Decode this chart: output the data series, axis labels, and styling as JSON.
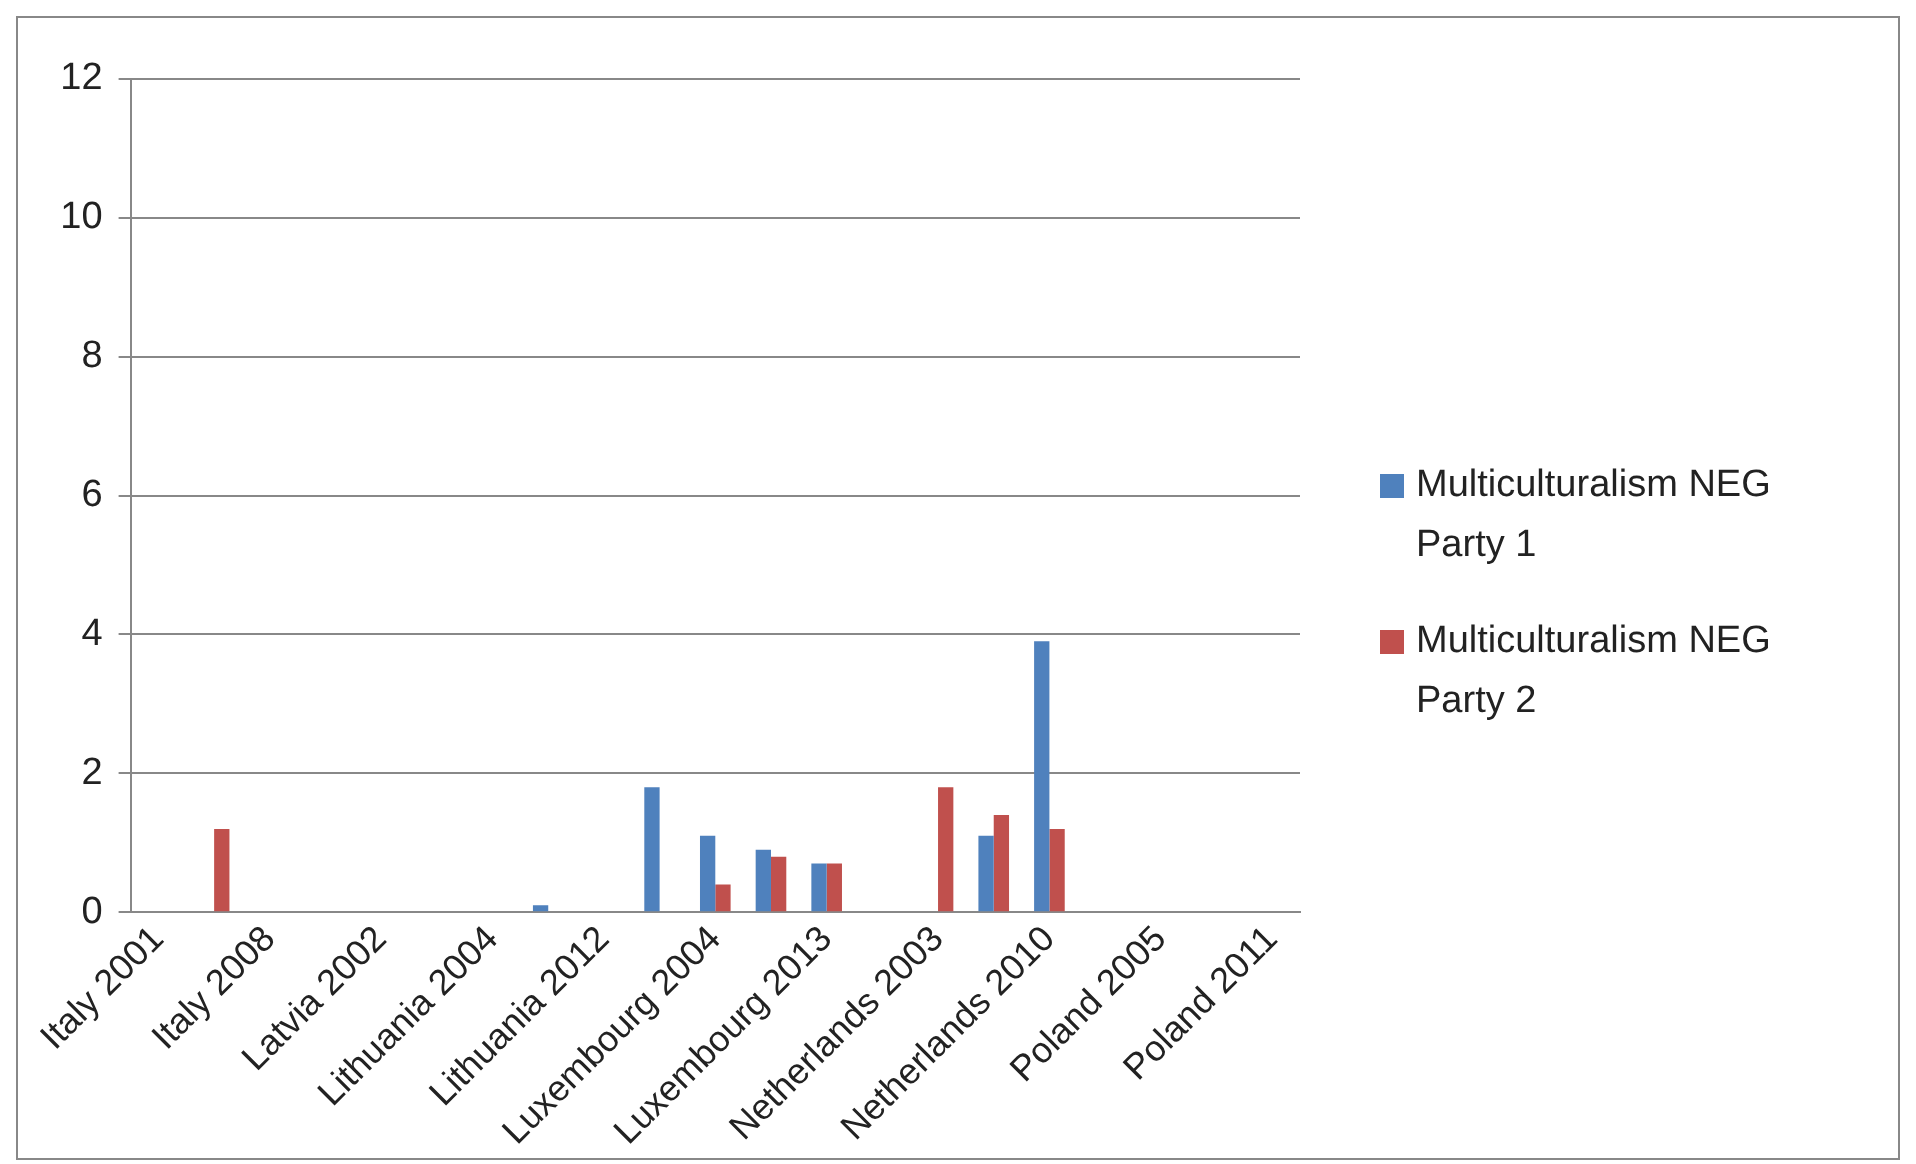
{
  "chart_data": {
    "type": "bar",
    "categories": [
      "Italy 2001",
      null,
      "Italy 2008",
      null,
      "Latvia 2002",
      null,
      "Lithuania 2004",
      null,
      "Lithuania 2012",
      null,
      "Luxembourg 2004",
      null,
      "Luxembourg 2013",
      null,
      "Netherlands 2003",
      null,
      "Netherlands 2010",
      null,
      "Poland 2005",
      null,
      "Poland 2011"
    ],
    "series": [
      {
        "name": "Multiculturalism NEG Party 1",
        "color": "#4f81bd",
        "values": [
          0,
          0,
          0,
          0,
          0,
          0,
          0,
          0.1,
          0,
          1.8,
          1.1,
          0.9,
          0.7,
          0,
          0,
          1.1,
          3.9,
          0,
          0,
          0,
          0
        ]
      },
      {
        "name": "Multiculturalism NEG Party 2",
        "color": "#c0504d",
        "values": [
          0,
          1.2,
          0,
          0,
          0,
          0,
          0,
          0,
          0,
          0,
          0.4,
          0.8,
          0.7,
          0,
          1.8,
          1.4,
          1.2,
          0,
          0,
          0,
          0
        ]
      }
    ],
    "ylim": [
      0,
      12
    ],
    "yticks": [
      0,
      2,
      4,
      6,
      8,
      10,
      12
    ],
    "grid": "y",
    "legend": "right"
  }
}
